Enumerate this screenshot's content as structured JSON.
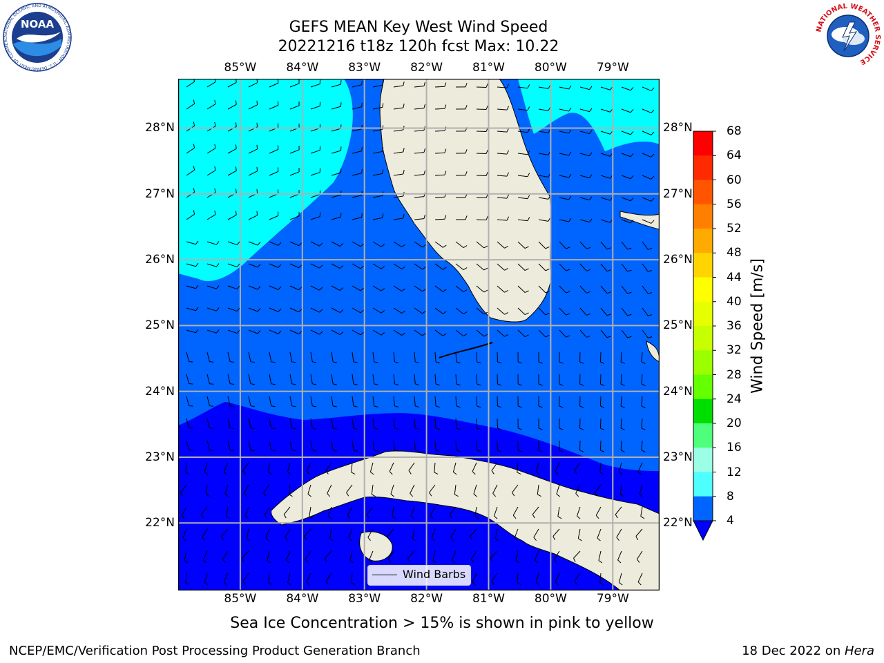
{
  "title": {
    "line1": "GEFS MEAN Key West Wind Speed",
    "line2": "20221216 t18z 120h fcst   Max: 10.22"
  },
  "map": {
    "lon_ticks": [
      "85°W",
      "84°W",
      "83°W",
      "82°W",
      "81°W",
      "80°W",
      "79°W"
    ],
    "lat_ticks": [
      "28°N",
      "27°N",
      "26°N",
      "25°N",
      "24°N",
      "23°N",
      "22°N"
    ],
    "legend_label": "Wind Barbs",
    "colors": {
      "land": "#ecebdc",
      "level_4_8": "#0064ff",
      "level_8_12": "#00ffff",
      "level_below_4": "#0000ff",
      "coast": "#000000",
      "grid": "#b0b0b0"
    }
  },
  "colorbar": {
    "label": "Wind Speed [m/s]",
    "ticks": [
      "68",
      "64",
      "60",
      "56",
      "52",
      "48",
      "44",
      "40",
      "36",
      "32",
      "28",
      "24",
      "20",
      "16",
      "12",
      "8",
      "4"
    ],
    "colors_top_to_bottom": [
      "#ff0000",
      "#ff2a00",
      "#ff5500",
      "#ff8000",
      "#ffaa00",
      "#ffd400",
      "#ffff00",
      "#e6ff00",
      "#c8ff00",
      "#9bff00",
      "#64ff00",
      "#00dd00",
      "#4dff7a",
      "#9bffe6",
      "#4dffff",
      "#00ffff"
    ],
    "under_color": "#0000ff",
    "bottom_color": "#0064ff"
  },
  "note": "Sea Ice Concentration > 15% is shown in pink to yellow",
  "footer": {
    "left": "NCEP/EMC/Verification Post Processing Product Generation Branch",
    "right_prefix": "18 Dec 2022 on ",
    "right_host": "Hera"
  },
  "logos": {
    "noaa_text": "NOAA",
    "noaa_ring": "NATIONAL OCEANIC AND ATMOSPHERIC ADMINISTRATION · U.S. DEPARTMENT OF COMMERCE",
    "nws_ring": "NATIONAL WEATHER SERVICE"
  }
}
